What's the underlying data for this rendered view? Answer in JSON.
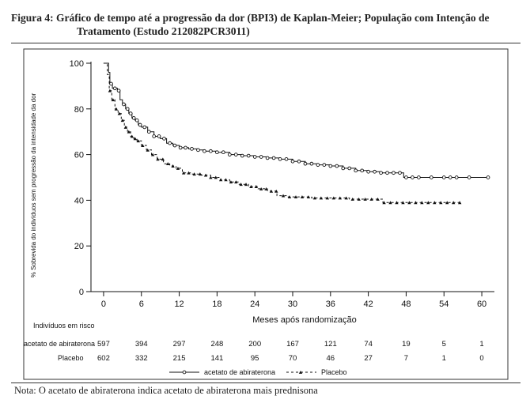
{
  "caption": {
    "prefix": "Figura 4",
    "line1": ": Gráfico de tempo até a progressão da dor (BPI3) de Kaplan-Meier; População com Intenção de",
    "line2": "Tratamento (Estudo 212082PCR3011)"
  },
  "note": "Nota: O acetato de abiraterona indica acetato de abiraterona mais prednisona",
  "chart_data": {
    "type": "line",
    "title": "",
    "xlabel": "Meses após randomização",
    "ylabel": "% Sobrevida do indivíduos sem progressão da intensidade da dor",
    "xlim": [
      -2,
      62
    ],
    "ylim": [
      0,
      100
    ],
    "xticks": [
      0,
      6,
      12,
      18,
      24,
      30,
      36,
      42,
      48,
      54,
      60
    ],
    "yticks": [
      0,
      20,
      40,
      60,
      80,
      100
    ],
    "grid": false,
    "legend_position": "bottom",
    "series": [
      {
        "name": "acetato de abiraterona",
        "color": "#111111",
        "line_style": "solid",
        "marker": "circle",
        "points": [
          [
            0,
            100
          ],
          [
            0.6,
            100
          ],
          [
            0.8,
            96
          ],
          [
            1,
            91
          ],
          [
            1.4,
            89
          ],
          [
            2.2,
            88
          ],
          [
            2.6,
            84
          ],
          [
            3,
            82
          ],
          [
            3.5,
            80
          ],
          [
            4,
            78
          ],
          [
            4.5,
            76
          ],
          [
            5,
            75
          ],
          [
            5.5,
            73
          ],
          [
            6,
            72
          ],
          [
            7,
            70
          ],
          [
            8,
            68
          ],
          [
            9,
            67
          ],
          [
            10,
            65
          ],
          [
            11,
            64
          ],
          [
            12,
            63
          ],
          [
            13.5,
            62.5
          ],
          [
            15,
            62
          ],
          [
            16,
            61.5
          ],
          [
            18,
            61
          ],
          [
            20,
            60
          ],
          [
            22,
            59.5
          ],
          [
            24,
            59
          ],
          [
            26,
            58.5
          ],
          [
            28,
            58
          ],
          [
            30,
            57
          ],
          [
            32,
            56
          ],
          [
            34,
            55.5
          ],
          [
            36,
            55
          ],
          [
            38,
            54
          ],
          [
            40,
            53
          ],
          [
            42,
            52.5
          ],
          [
            44,
            52
          ],
          [
            46,
            52
          ],
          [
            47.5,
            52
          ],
          [
            47.6,
            50
          ],
          [
            52,
            50
          ],
          [
            56,
            50
          ],
          [
            61,
            50
          ]
        ],
        "marker_x": [
          1.2,
          1.8,
          2.4,
          3.2,
          3.8,
          4.3,
          4.8,
          5.3,
          5.8,
          6.5,
          7.2,
          8,
          8.8,
          9.6,
          10.5,
          11.3,
          12.2,
          13,
          14,
          15,
          16,
          17,
          18,
          19,
          20,
          21,
          22,
          23,
          24,
          25,
          26,
          27,
          28,
          29,
          30,
          31,
          32,
          33,
          34,
          35,
          36,
          37,
          38,
          39,
          40,
          41,
          42,
          43,
          44,
          45,
          46,
          47,
          48,
          49,
          50,
          52,
          54,
          55,
          56,
          58,
          61
        ]
      },
      {
        "name": "Placebo",
        "color": "#111111",
        "line_style": "dashed",
        "marker": "triangle",
        "points": [
          [
            0,
            100
          ],
          [
            0.4,
            100
          ],
          [
            0.6,
            95
          ],
          [
            0.9,
            88
          ],
          [
            1.3,
            84
          ],
          [
            1.8,
            80
          ],
          [
            2.3,
            78
          ],
          [
            2.8,
            75
          ],
          [
            3.3,
            72
          ],
          [
            3.8,
            70
          ],
          [
            4.3,
            68
          ],
          [
            4.8,
            67
          ],
          [
            5.3,
            66
          ],
          [
            6,
            64
          ],
          [
            6.8,
            62
          ],
          [
            7.6,
            60
          ],
          [
            8.5,
            58
          ],
          [
            9.5,
            56
          ],
          [
            10.5,
            55
          ],
          [
            11.5,
            54
          ],
          [
            12.5,
            52
          ],
          [
            14,
            51.5
          ],
          [
            15.5,
            51
          ],
          [
            17,
            50
          ],
          [
            18.5,
            49
          ],
          [
            20,
            48
          ],
          [
            21.5,
            47
          ],
          [
            23,
            46
          ],
          [
            24.5,
            45
          ],
          [
            26,
            44
          ],
          [
            27.5,
            42
          ],
          [
            29,
            41.5
          ],
          [
            31,
            41.5
          ],
          [
            33,
            41
          ],
          [
            35,
            41
          ],
          [
            37,
            41
          ],
          [
            39,
            40.5
          ],
          [
            41,
            40.5
          ],
          [
            43,
            40.5
          ],
          [
            44.2,
            40.5
          ],
          [
            44.3,
            39
          ],
          [
            46,
            39
          ],
          [
            48,
            39
          ],
          [
            50,
            39
          ],
          [
            52,
            39
          ],
          [
            54,
            39
          ],
          [
            56.5,
            39
          ]
        ],
        "marker_x": [
          1,
          1.5,
          2,
          2.5,
          3,
          3.5,
          4,
          4.5,
          5,
          5.5,
          6.2,
          7,
          7.8,
          8.6,
          9.4,
          10.2,
          11,
          11.8,
          12.7,
          13.5,
          14.4,
          15.3,
          16.2,
          17,
          17.8,
          18.6,
          19.4,
          20.2,
          21,
          21.8,
          22.6,
          23.4,
          24.2,
          25,
          25.8,
          26.6,
          27.4,
          28.5,
          29.5,
          30.5,
          31.5,
          32.5,
          33.5,
          34.5,
          35.5,
          36.5,
          37.5,
          38.5,
          39.5,
          40.5,
          41.5,
          42.5,
          43.5,
          44.5,
          45.5,
          46.5,
          47.5,
          48.5,
          49.5,
          50.5,
          51.5,
          52.5,
          53.5,
          54.5,
          55.5,
          56.5
        ]
      }
    ],
    "risk_table": {
      "title": "Indivíduos em risco",
      "times": [
        0,
        6,
        12,
        18,
        24,
        30,
        36,
        42,
        48,
        54,
        60
      ],
      "rows": [
        {
          "label": "acetato de abiraterona",
          "values": [
            "597",
            "394",
            "297",
            "248",
            "200",
            "167",
            "121",
            "74",
            "19",
            "5",
            "1"
          ]
        },
        {
          "label": "Placebo",
          "values": [
            "602",
            "332",
            "215",
            "141",
            "95",
            "70",
            "46",
            "27",
            "7",
            "1",
            "0"
          ]
        }
      ]
    }
  }
}
